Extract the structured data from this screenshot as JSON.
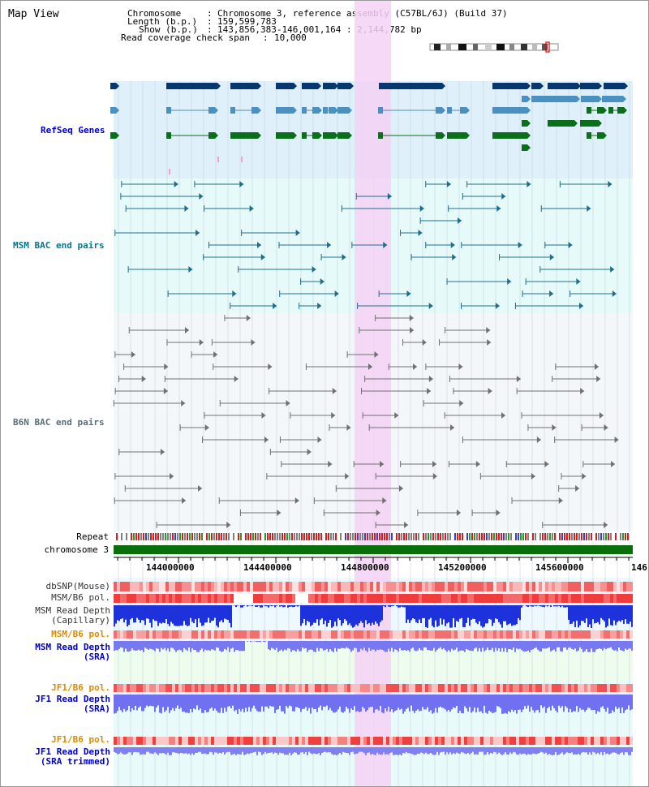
{
  "header": {
    "map_view": "Map View",
    "chromosome_label": "Chromosome",
    "chromosome_value": "Chromosome 3, reference assembly (C57BL/6J) (Build 37)",
    "length_label": "Length (b.p.)",
    "length_value": "159,599,783",
    "show_label": "Show (b.p.)",
    "show_value": "143,856,383-146,001,164 : 2,144,782 bp",
    "coverage_label": "Read coverage check span",
    "coverage_value": "10,000"
  },
  "tracks": {
    "refseq": "RefSeq Genes",
    "msm_bac": "MSM BAC end pairs",
    "b6n_bac": "B6N BAC end pairs",
    "repeat": "Repeat",
    "chromosome": "chromosome 3"
  },
  "axis": {
    "ticks": [
      "144000000",
      "144400000",
      "144800000",
      "145200000",
      "145600000",
      "146"
    ]
  },
  "lower": {
    "dbsnp": "dbSNP(Mouse)",
    "msm_b6_pol_1": "MSM/B6 pol.",
    "msm_read_depth_cap_1": "MSM Read Depth",
    "msm_read_depth_cap_2": "(Capillary)",
    "msm_b6_pol_2": "MSM/B6 pol.",
    "msm_read_depth_sra_1": "MSM Read Depth",
    "msm_read_depth_sra_2": "(SRA)",
    "jf1_b6_pol_1": "JF1/B6 pol.",
    "jf1_read_depth_1": "JF1 Read Depth",
    "jf1_read_depth_2": "(SRA)",
    "jf1_b6_pol_2": "JF1/B6 pol.",
    "jf1_trim_1": "JF1 Read Depth",
    "jf1_trim_2": "(SRA trimmed)"
  },
  "colors": {
    "refseq_bg": "#dff0fa",
    "msm_bg": "#e6fafa",
    "b6n_bg": "#f4f7fa",
    "highlight": "#f5d2f5",
    "navy": "#06376e",
    "mid_blue": "#4a90c0",
    "green": "#0a6e1a",
    "msm_line": "#1e6e8a",
    "b6n_line": "#707070",
    "chrom_bar": "#0a6e0a",
    "label_blue": "#0000c8",
    "label_teal": "#00788c",
    "label_orange": "#dc8c00"
  }
}
